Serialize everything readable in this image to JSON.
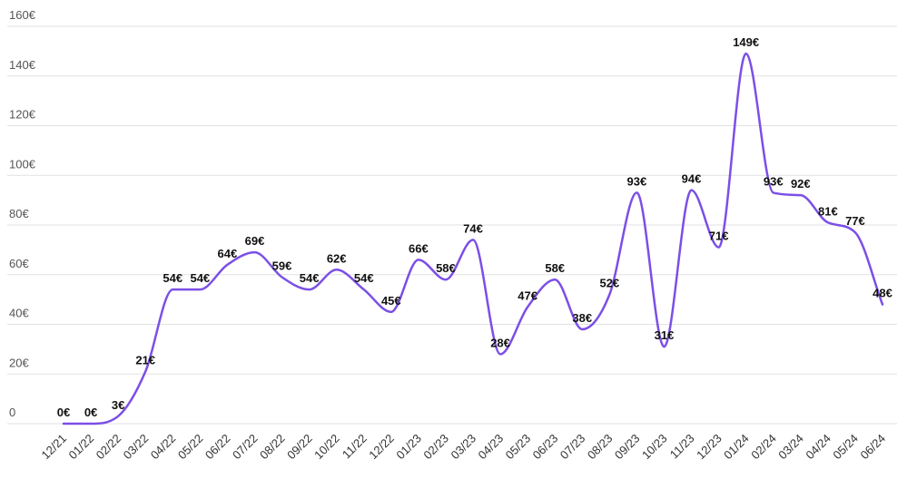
{
  "chart_data": {
    "type": "line",
    "title": "",
    "xlabel": "",
    "ylabel": "",
    "ylim": [
      0,
      160
    ],
    "yticks": [
      0,
      20,
      40,
      60,
      80,
      100,
      120,
      140,
      160
    ],
    "ytick_labels": [
      "0",
      "20€",
      "40€",
      "60€",
      "80€",
      "100€",
      "120€",
      "140€",
      "160€"
    ],
    "grid": true,
    "legend": "none",
    "line_color": "#7b4fe6",
    "categories": [
      "12/21",
      "01/22",
      "02/22",
      "03/22",
      "04/22",
      "05/22",
      "06/22",
      "07/22",
      "08/22",
      "09/22",
      "10/22",
      "11/22",
      "12/22",
      "01/23",
      "02/23",
      "03/23",
      "04/23",
      "05/23",
      "06/23",
      "07/23",
      "08/23",
      "09/23",
      "10/23",
      "11/23",
      "12/23",
      "01/24",
      "02/24",
      "03/24",
      "04/24",
      "05/24",
      "06/24"
    ],
    "values": [
      0,
      0,
      3,
      21,
      54,
      54,
      64,
      69,
      59,
      54,
      62,
      54,
      45,
      66,
      58,
      74,
      28,
      47,
      58,
      38,
      52,
      93,
      31,
      94,
      71,
      149,
      93,
      92,
      81,
      77,
      48
    ],
    "data_labels": [
      "0€",
      "0€",
      "3€",
      "21€",
      "54€",
      "54€",
      "64€",
      "69€",
      "59€",
      "54€",
      "62€",
      "54€",
      "45€",
      "66€",
      "58€",
      "74€",
      "28€",
      "47€",
      "58€",
      "38€",
      "52€",
      "93€",
      "31€",
      "94€",
      "71€",
      "149€",
      "93€",
      "92€",
      "81€",
      "77€",
      "48€"
    ]
  }
}
